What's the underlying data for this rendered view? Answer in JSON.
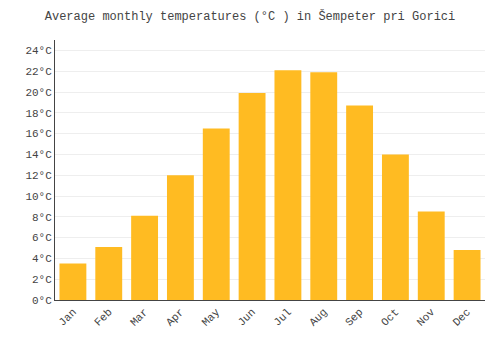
{
  "chart_data": {
    "type": "bar",
    "title": "Average monthly temperatures (°C ) in Šempeter pri Gorici",
    "categories": [
      "Jan",
      "Feb",
      "Mar",
      "Apr",
      "May",
      "Jun",
      "Jul",
      "Aug",
      "Sep",
      "Oct",
      "Nov",
      "Dec"
    ],
    "values": [
      3.5,
      5.1,
      8.1,
      12.0,
      16.5,
      19.9,
      22.1,
      21.9,
      18.7,
      14.0,
      8.5,
      4.8
    ],
    "color": "#FFBB22",
    "ylim": [
      0,
      25
    ],
    "yticks": [
      {
        "value": 0,
        "label": "0°C"
      },
      {
        "value": 2,
        "label": "2°C"
      },
      {
        "value": 4,
        "label": "4°C"
      },
      {
        "value": 6,
        "label": "6°C"
      },
      {
        "value": 8,
        "label": "8°C"
      },
      {
        "value": 10,
        "label": "10°C"
      },
      {
        "value": 12,
        "label": "12°C"
      },
      {
        "value": 14,
        "label": "14°C"
      },
      {
        "value": 16,
        "label": "16°C"
      },
      {
        "value": 18,
        "label": "18°C"
      },
      {
        "value": 20,
        "label": "20°C"
      },
      {
        "value": 22,
        "label": "22°C"
      },
      {
        "value": 24,
        "label": "24°C"
      }
    ],
    "grid": true
  }
}
